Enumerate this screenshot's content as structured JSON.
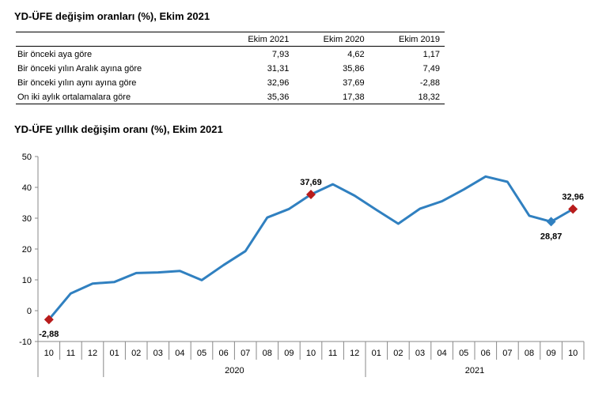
{
  "table_title": "YD-ÜFE değişim oranları (%), Ekim 2021",
  "table": {
    "headers": [
      "",
      "Ekim 2021",
      "Ekim 2020",
      "Ekim 2019"
    ],
    "rows": [
      {
        "label": "Bir önceki aya göre",
        "values": [
          "7,93",
          "4,62",
          "1,17"
        ]
      },
      {
        "label": "Bir önceki yılın Aralık ayına göre",
        "values": [
          "31,31",
          "35,86",
          "7,49"
        ]
      },
      {
        "label": "Bir önceki yılın aynı ayına göre",
        "values": [
          "32,96",
          "37,69",
          "-2,88"
        ]
      },
      {
        "label": "On iki aylık ortalamalara göre",
        "values": [
          "35,36",
          "17,38",
          "18,32"
        ]
      }
    ]
  },
  "chart_title": "YD-ÜFE yıllık değişim oranı (%), Ekim 2021",
  "colors": {
    "line": "#3080c0",
    "highlight": "#b81c1c",
    "marker_blue": "#3080c0",
    "axis": "#888888"
  },
  "chart_data": {
    "type": "line",
    "title": "YD-ÜFE yıllık değişim oranı (%), Ekim 2021",
    "x": [
      "10",
      "11",
      "12",
      "01",
      "02",
      "03",
      "04",
      "05",
      "06",
      "07",
      "08",
      "09",
      "10",
      "11",
      "12",
      "01",
      "02",
      "03",
      "04",
      "05",
      "06",
      "07",
      "08",
      "09",
      "10"
    ],
    "year_groups": [
      {
        "label": "",
        "start": 0,
        "end": 2
      },
      {
        "label": "2020",
        "start": 3,
        "end": 14
      },
      {
        "label": "2021",
        "start": 15,
        "end": 24
      }
    ],
    "series": [
      {
        "values": [
          -2.88,
          5.6,
          8.8,
          9.3,
          12.2,
          12.4,
          12.9,
          9.9,
          14.8,
          19.3,
          30.2,
          33.0,
          37.69,
          41.0,
          37.3,
          32.7,
          28.2,
          33.1,
          35.5,
          39.3,
          43.5,
          41.8,
          30.8,
          28.87,
          32.96
        ]
      }
    ],
    "ylim": [
      -10,
      50
    ],
    "yticks": [
      -10,
      0,
      10,
      20,
      30,
      40,
      50
    ],
    "grid": false,
    "highlights": [
      {
        "index": 0,
        "label": "-2,88",
        "color": "red",
        "label_pos": "below"
      },
      {
        "index": 12,
        "label": "37,69",
        "color": "red",
        "label_pos": "above"
      },
      {
        "index": 23,
        "label": "28,87",
        "color": "blue",
        "label_pos": "below"
      },
      {
        "index": 24,
        "label": "32,96",
        "color": "red",
        "label_pos": "above"
      }
    ]
  }
}
